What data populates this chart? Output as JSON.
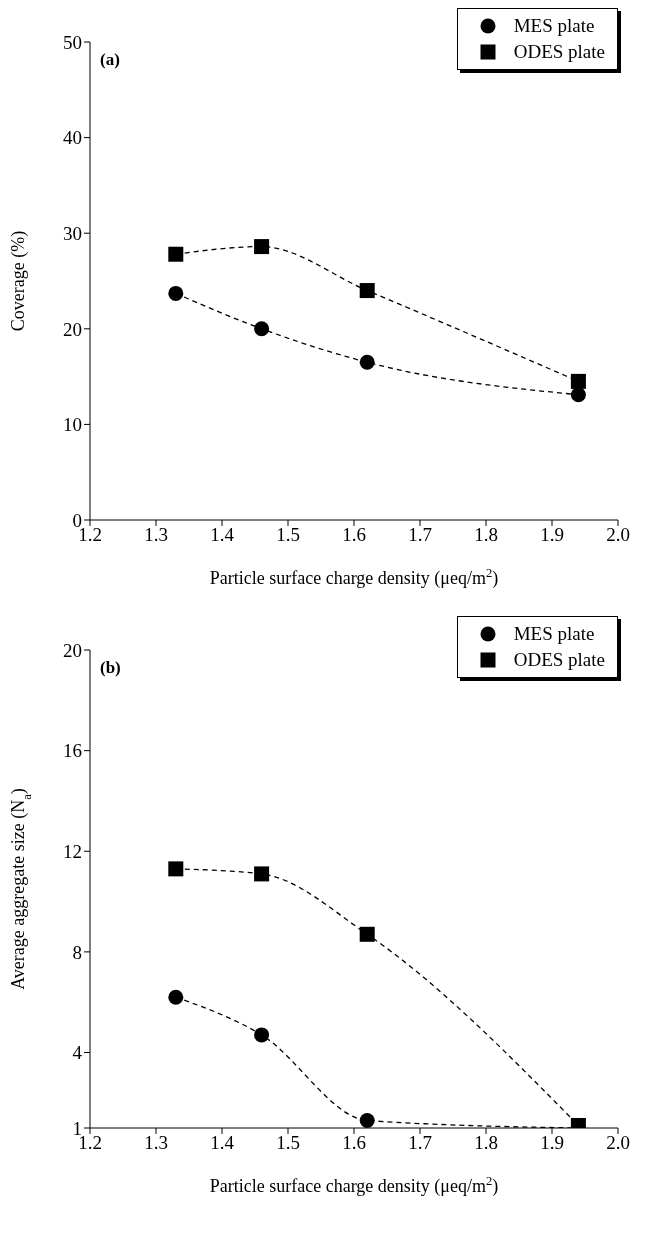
{
  "chart_data": [
    {
      "type": "line",
      "annotations": [
        "(a)"
      ],
      "xlabel": "Particle surface charge density (μeq/m$^{2}$)",
      "ylabel": "Coverage (%)",
      "xlim": [
        1.2,
        2.0
      ],
      "xticks": [
        1.2,
        1.3,
        1.4,
        1.5,
        1.6,
        1.7,
        1.8,
        1.9,
        {
          "value": 2.0,
          "label": "2.0"
        }
      ],
      "ylim": [
        0,
        50
      ],
      "yticks": [
        0,
        10,
        20,
        30,
        40,
        50
      ],
      "legend": "top right",
      "line_style": "dashed",
      "grid": false,
      "series": [
        {
          "name": "MES plate",
          "color": "#000000",
          "marker": "circle",
          "x": [
            1.33,
            1.46,
            1.62,
            1.94
          ],
          "values": [
            23.7,
            20.0,
            16.5,
            13.1
          ]
        },
        {
          "name": "ODES plate",
          "color": "#000000",
          "marker": "square",
          "x": [
            1.33,
            1.46,
            1.62,
            1.94
          ],
          "values": [
            27.8,
            28.6,
            24.0,
            14.5
          ]
        }
      ]
    },
    {
      "type": "line",
      "annotations": [
        "(b)"
      ],
      "xlabel": "Particle surface charge density (μeq/m$^{2}$)",
      "ylabel": "Average aggregate size (N$_{a}$)",
      "xlim": [
        1.2,
        2.0
      ],
      "xticks": [
        1.2,
        1.3,
        1.4,
        1.5,
        1.6,
        1.7,
        1.8,
        1.9,
        {
          "value": 2.0,
          "label": "2.0"
        }
      ],
      "ylim": [
        1,
        20
      ],
      "yticks": [
        1,
        4,
        8,
        12,
        16,
        20
      ],
      "legend": "top right",
      "line_style": "dashed",
      "grid": false,
      "series": [
        {
          "name": "MES plate",
          "color": "#000000",
          "marker": "circle",
          "x": [
            1.33,
            1.46,
            1.62,
            1.94
          ],
          "values": [
            6.2,
            4.7,
            1.3,
            1.0
          ]
        },
        {
          "name": "ODES plate",
          "color": "#000000",
          "marker": "square",
          "x": [
            1.33,
            1.46,
            1.62,
            1.94
          ],
          "values": [
            11.3,
            11.1,
            8.7,
            1.1
          ]
        }
      ]
    }
  ]
}
